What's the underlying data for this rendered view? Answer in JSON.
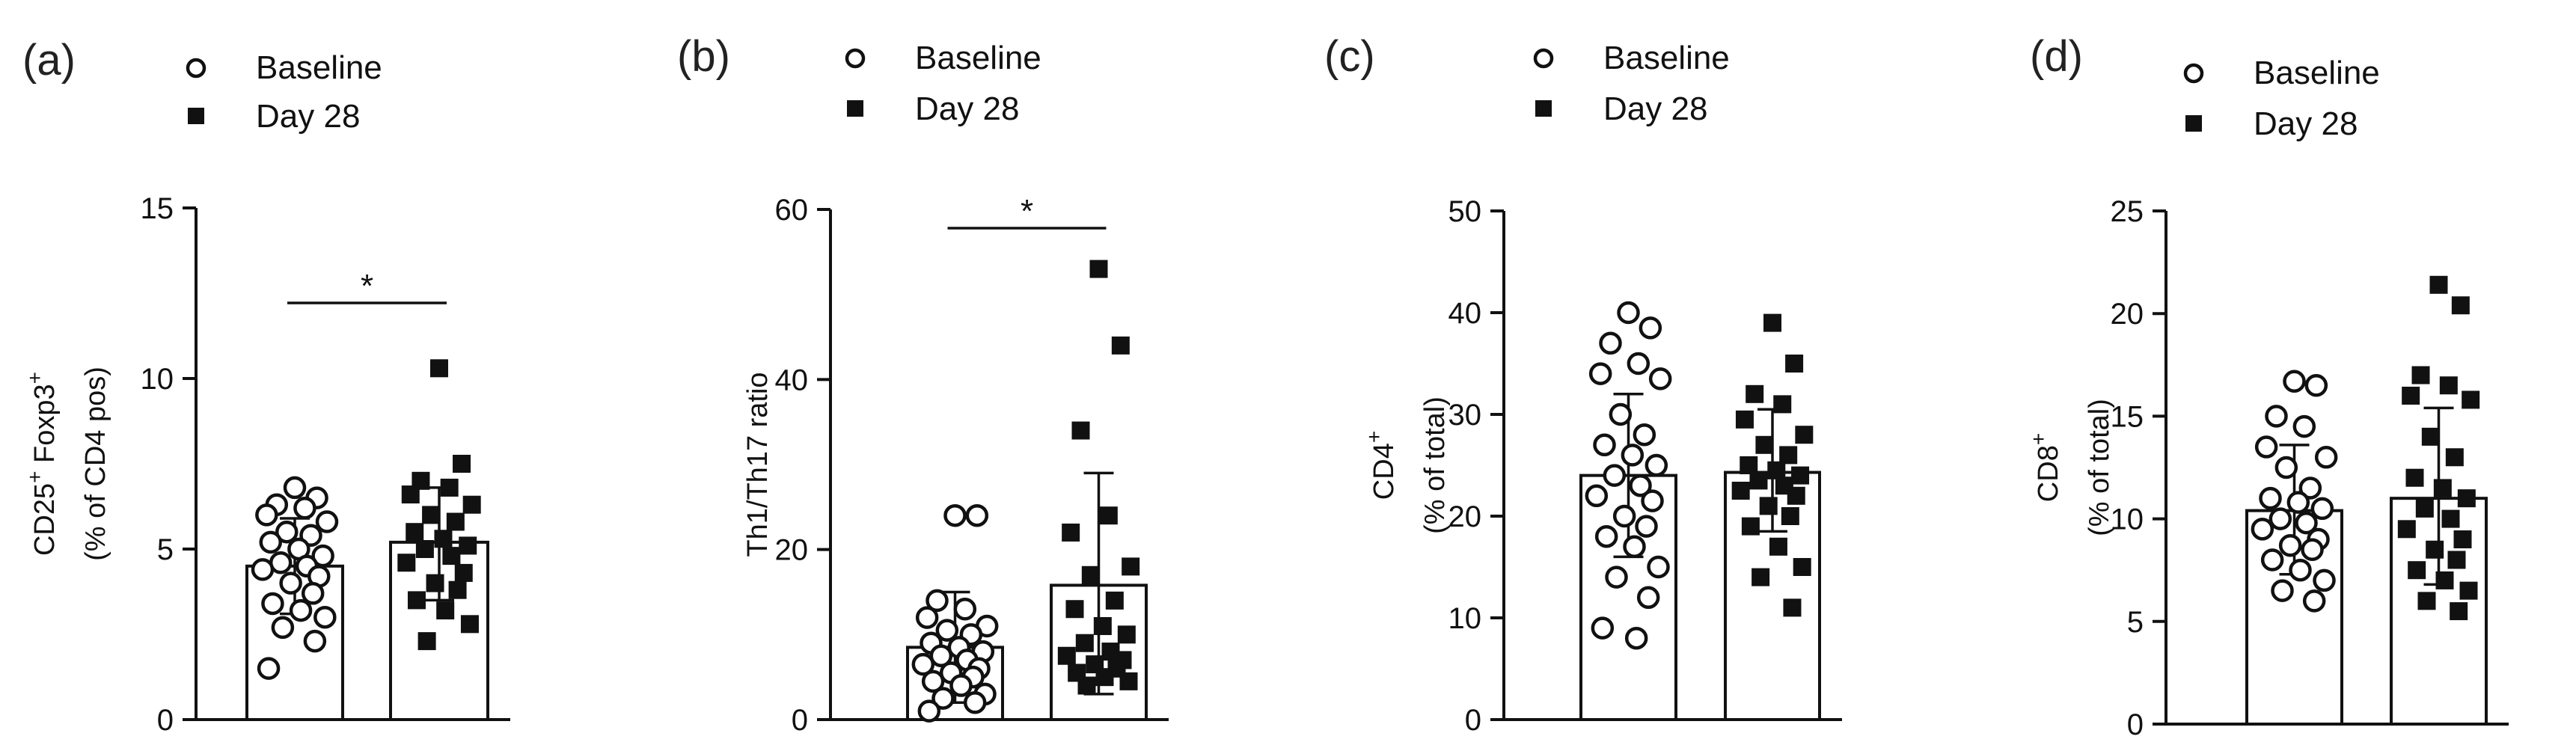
{
  "legend": {
    "baseline_label": "Baseline",
    "day28_label": "Day 28"
  },
  "chart_data": [
    {
      "type": "bar",
      "panel": "(a)",
      "ylabel_lines": [
        "CD25",
        "+",
        " Foxp3",
        "+",
        "(% of CD4 pos)"
      ],
      "ylim": [
        0,
        15
      ],
      "yticks": [
        "0",
        "5",
        "10",
        "15"
      ],
      "categories": [
        "Baseline",
        "Day 28"
      ],
      "significance": "*",
      "series": [
        {
          "name": "Baseline",
          "mean": 4.5,
          "sd_low": 3.1,
          "sd_high": 5.9,
          "points": [
            6.8,
            6.5,
            6.3,
            6.2,
            6.0,
            5.8,
            5.5,
            5.4,
            5.2,
            5.0,
            4.8,
            4.6,
            4.5,
            4.4,
            4.2,
            4.0,
            3.7,
            3.4,
            3.2,
            3.0,
            2.7,
            2.3,
            1.5
          ]
        },
        {
          "name": "Day 28",
          "mean": 5.2,
          "sd_low": 3.5,
          "sd_high": 6.8,
          "points": [
            10.3,
            7.5,
            7.0,
            6.8,
            6.6,
            6.3,
            6.0,
            5.8,
            5.5,
            5.3,
            5.1,
            5.0,
            4.8,
            4.6,
            4.3,
            4.0,
            3.8,
            3.5,
            3.2,
            2.8,
            2.3
          ]
        }
      ]
    },
    {
      "type": "bar",
      "panel": "(b)",
      "ylabel_lines": [
        "Th1/Th17 ratio"
      ],
      "ylim": [
        0,
        60
      ],
      "yticks": [
        "0",
        "20",
        "40",
        "60"
      ],
      "categories": [
        "Baseline",
        "Day 28"
      ],
      "significance": "*",
      "series": [
        {
          "name": "Baseline",
          "mean": 8.5,
          "sd_low": 2.0,
          "sd_high": 15.0,
          "points": [
            24,
            24,
            14,
            13,
            12,
            11,
            10.5,
            10,
            9,
            8.5,
            8,
            7.5,
            7,
            6.5,
            6,
            5.5,
            5,
            4.5,
            4,
            3,
            2.5,
            2,
            1
          ]
        },
        {
          "name": "Day 28",
          "mean": 15.8,
          "sd_low": 3.0,
          "sd_high": 29.0,
          "points": [
            53,
            44,
            34,
            24,
            22,
            18,
            17,
            14,
            13,
            11,
            10,
            9,
            8,
            7.5,
            7,
            6.5,
            6,
            5.5,
            5,
            4.5,
            4
          ]
        }
      ]
    },
    {
      "type": "bar",
      "panel": "(c)",
      "ylabel_lines": [
        "CD4",
        "+",
        "(% of total)"
      ],
      "ylim": [
        0,
        50
      ],
      "yticks": [
        "0",
        "10",
        "20",
        "30",
        "40",
        "50"
      ],
      "categories": [
        "Baseline",
        "Day 28"
      ],
      "significance": "",
      "series": [
        {
          "name": "Baseline",
          "mean": 24.0,
          "sd_low": 16.0,
          "sd_high": 32.0,
          "points": [
            40,
            38.5,
            37,
            35,
            34,
            33.5,
            30,
            28,
            27,
            26,
            25,
            24,
            23,
            22,
            21.5,
            20,
            19,
            18,
            17,
            15,
            14,
            12,
            9,
            8
          ]
        },
        {
          "name": "Day 28",
          "mean": 24.3,
          "sd_low": 18.5,
          "sd_high": 30.5,
          "points": [
            39,
            35,
            32,
            31,
            29.5,
            28,
            27,
            26,
            25,
            24.5,
            24,
            23.5,
            23,
            22.5,
            22,
            21,
            20,
            19,
            17,
            15,
            14,
            11
          ]
        }
      ]
    },
    {
      "type": "bar",
      "panel": "(d)",
      "ylabel_lines": [
        "CD8",
        "+",
        "(% of total)"
      ],
      "ylim": [
        0,
        25
      ],
      "yticks": [
        "0",
        "5",
        "10",
        "15",
        "20",
        "25"
      ],
      "categories": [
        "Baseline",
        "Day 28"
      ],
      "significance": "",
      "series": [
        {
          "name": "Baseline",
          "mean": 10.4,
          "sd_low": 7.3,
          "sd_high": 13.6,
          "points": [
            16.7,
            16.5,
            15,
            14.5,
            13.5,
            13,
            12.5,
            11.5,
            11,
            10.8,
            10.5,
            10,
            9.8,
            9.5,
            9,
            8.7,
            8.5,
            8,
            7.5,
            7,
            6.5,
            6
          ]
        },
        {
          "name": "Day 28",
          "mean": 11.0,
          "sd_low": 6.8,
          "sd_high": 15.4,
          "points": [
            21.4,
            20.4,
            17,
            16.5,
            16,
            15.8,
            14,
            13,
            12,
            11.5,
            11,
            10.5,
            10,
            9.5,
            9,
            8.5,
            8,
            7.5,
            7,
            6.5,
            6,
            5.5
          ]
        }
      ]
    }
  ]
}
